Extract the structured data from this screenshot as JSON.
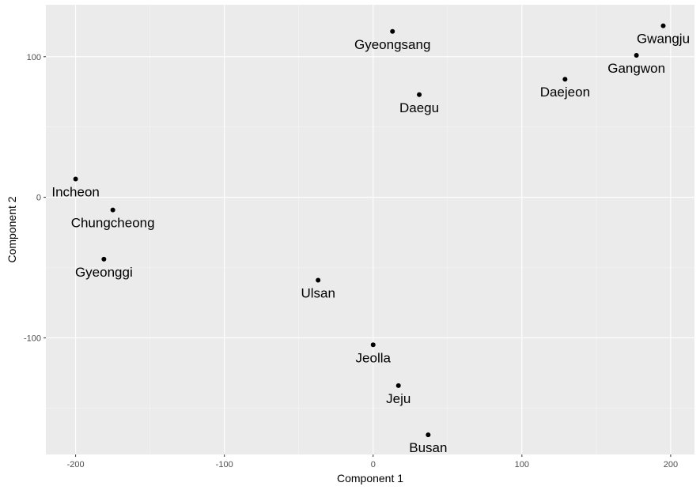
{
  "chart_data": {
    "type": "scatter",
    "title": "",
    "xlabel": "Component 1",
    "ylabel": "Component 2",
    "xlim": [
      -220,
      216
    ],
    "ylim": [
      -183,
      137
    ],
    "x_major_ticks": [
      -200,
      -100,
      0,
      100,
      200
    ],
    "x_tick_labels": [
      "-200",
      "-100",
      "0",
      "100",
      "200"
    ],
    "x_minor_ticks": [
      -150,
      -50,
      50,
      150
    ],
    "y_major_ticks": [
      -100,
      0,
      100
    ],
    "y_tick_labels": [
      "-100",
      "0",
      "100"
    ],
    "y_minor_ticks": [
      -150,
      -50,
      50
    ],
    "grid": true,
    "colors": {
      "panel_background": "#ebebeb",
      "grid_major": "#ffffff",
      "grid_minor": "#f5f5f5",
      "point": "#000000",
      "text": "#000000",
      "tick_text": "#4d4d4d"
    },
    "points": [
      {
        "label": "Gwangju",
        "x": 195,
        "y": 122
      },
      {
        "label": "Gyeongsang",
        "x": 13,
        "y": 118
      },
      {
        "label": "Gangwon",
        "x": 177,
        "y": 101
      },
      {
        "label": "Daejeon",
        "x": 129,
        "y": 84
      },
      {
        "label": "Daegu",
        "x": 31,
        "y": 73
      },
      {
        "label": "Incheon",
        "x": -200,
        "y": 13
      },
      {
        "label": "Chungcheong",
        "x": -175,
        "y": -9
      },
      {
        "label": "Gyeonggi",
        "x": -181,
        "y": -44
      },
      {
        "label": "Ulsan",
        "x": -37,
        "y": -59
      },
      {
        "label": "Jeolla",
        "x": 0,
        "y": -105
      },
      {
        "label": "Jeju",
        "x": 17,
        "y": -134
      },
      {
        "label": "Busan",
        "x": 37,
        "y": -169
      }
    ]
  }
}
